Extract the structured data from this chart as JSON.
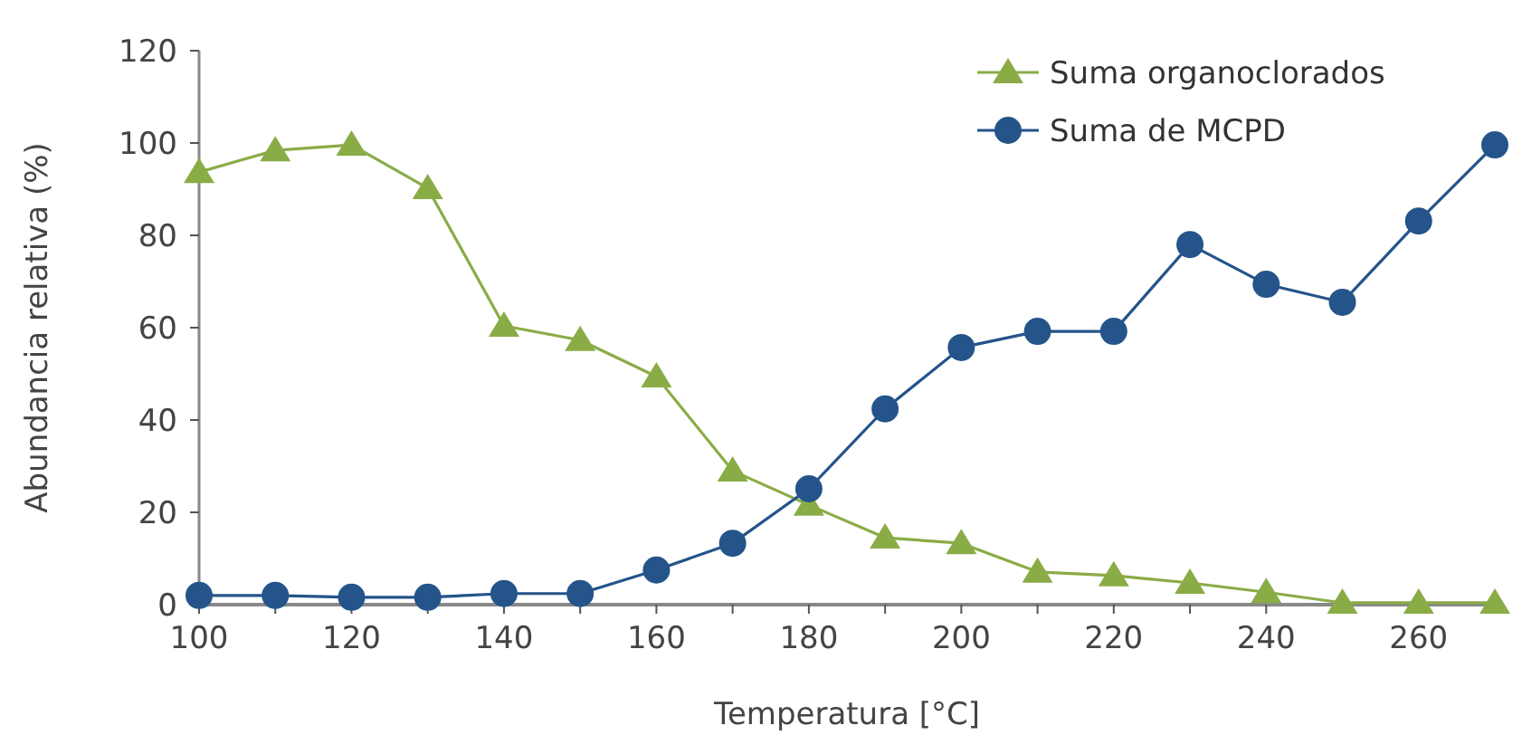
{
  "chart_data": {
    "type": "line",
    "xlabel": "Temperatura [°C]",
    "ylabel": "Abundancia relativa (%)",
    "x": [
      100,
      110,
      120,
      130,
      140,
      150,
      160,
      170,
      180,
      190,
      200,
      210,
      220,
      230,
      240,
      250,
      260,
      270
    ],
    "series": [
      {
        "name": "Suma organoclorados",
        "color": "#8aac46",
        "marker": "triangle",
        "values": [
          93.7,
          98.4,
          99.6,
          90.2,
          60.4,
          57.3,
          49.4,
          29.0,
          21.6,
          14.5,
          13.3,
          7.1,
          6.3,
          4.7,
          2.7,
          0.4,
          0.4,
          0.4
        ]
      },
      {
        "name": "Suma de MCPD",
        "color": "#24548a",
        "marker": "circle",
        "values": [
          2.0,
          2.0,
          1.6,
          1.6,
          2.4,
          2.4,
          7.5,
          13.3,
          25.1,
          42.4,
          55.7,
          59.2,
          59.2,
          78.0,
          69.4,
          65.5,
          83.1,
          99.6
        ]
      }
    ],
    "xlim": [
      100,
      270
    ],
    "xticks": [
      100,
      {
        "value": 110,
        "label": null
      },
      120,
      {
        "value": 130,
        "label": null
      },
      140,
      {
        "value": 150,
        "label": null
      },
      160,
      {
        "value": 170,
        "label": null
      },
      180,
      {
        "value": 190,
        "label": null
      },
      200,
      {
        "value": 210,
        "label": null
      },
      220,
      {
        "value": 230,
        "label": null
      },
      240,
      {
        "value": 250,
        "label": null
      },
      260,
      {
        "value": 270,
        "label": null
      }
    ],
    "ylim": [
      0,
      120
    ],
    "yticks": [
      0,
      20,
      40,
      60,
      80,
      100,
      120
    ],
    "grid": false,
    "legend": "top right",
    "line_style": "solid"
  }
}
